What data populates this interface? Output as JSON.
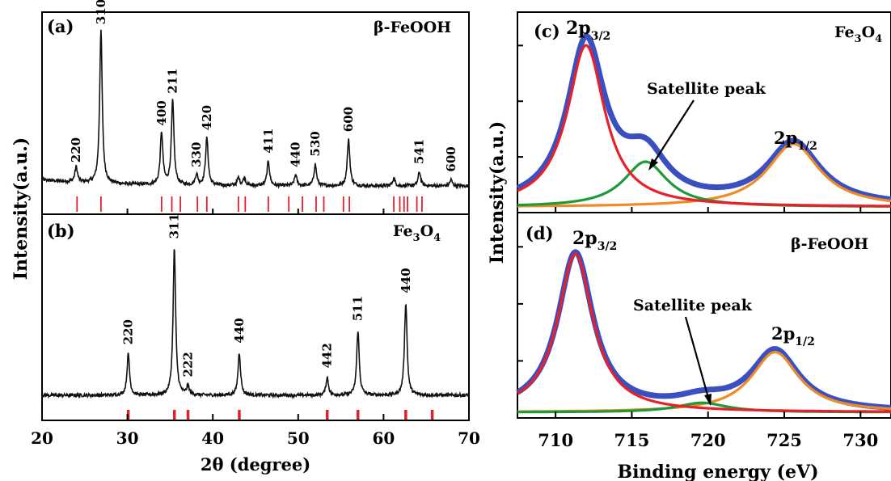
{
  "chart_data": [
    {
      "panel": "(a)",
      "type": "line",
      "material": "β-FeOOH",
      "xlim": [
        20,
        70
      ],
      "peaks": [
        {
          "x": 24.0,
          "h": 0.1,
          "label": "220"
        },
        {
          "x": 26.9,
          "h": 1.0,
          "label": "310"
        },
        {
          "x": 34.0,
          "h": 0.34,
          "label": "400"
        },
        {
          "x": 35.3,
          "h": 0.55,
          "label": "211"
        },
        {
          "x": 38.1,
          "h": 0.07,
          "label": "330"
        },
        {
          "x": 39.3,
          "h": 0.31,
          "label": "420"
        },
        {
          "x": 43.0,
          "h": 0.05,
          "label": ""
        },
        {
          "x": 43.7,
          "h": 0.05,
          "label": ""
        },
        {
          "x": 46.5,
          "h": 0.16,
          "label": "411"
        },
        {
          "x": 49.7,
          "h": 0.07,
          "label": "440"
        },
        {
          "x": 52.0,
          "h": 0.14,
          "label": "530"
        },
        {
          "x": 55.9,
          "h": 0.3,
          "label": "600"
        },
        {
          "x": 61.2,
          "h": 0.05,
          "label": ""
        },
        {
          "x": 64.2,
          "h": 0.09,
          "label": "541"
        },
        {
          "x": 67.9,
          "h": 0.04,
          "label": "600"
        }
      ],
      "reference_lines": [
        24.1,
        26.9,
        34.0,
        35.2,
        36.2,
        38.2,
        39.3,
        43.0,
        43.8,
        46.5,
        48.9,
        50.5,
        52.1,
        53.0,
        55.3,
        56.0,
        61.2,
        61.9,
        62.4,
        62.8,
        63.9,
        64.5
      ]
    },
    {
      "panel": "(b)",
      "type": "line",
      "material": "Fe3O4",
      "xlim": [
        20,
        70
      ],
      "xlabel": "2θ (degree)",
      "xticks": [
        20,
        30,
        40,
        50,
        60,
        70
      ],
      "peaks": [
        {
          "x": 30.1,
          "h": 0.28,
          "label": "220"
        },
        {
          "x": 35.5,
          "h": 1.0,
          "label": "311"
        },
        {
          "x": 37.1,
          "h": 0.06,
          "label": "222"
        },
        {
          "x": 43.1,
          "h": 0.29,
          "label": "440"
        },
        {
          "x": 53.4,
          "h": 0.12,
          "label": "442"
        },
        {
          "x": 57.0,
          "h": 0.44,
          "label": "511"
        },
        {
          "x": 62.6,
          "h": 0.63,
          "label": "440"
        }
      ],
      "reference_lines": [
        30.1,
        35.5,
        37.1,
        43.1,
        53.4,
        57.0,
        62.6,
        65.7
      ]
    },
    {
      "panel": "(c)",
      "type": "line",
      "material": "Fe3O4",
      "xlim": [
        707.5,
        732
      ],
      "peaks": [
        {
          "label": "2p3/2",
          "center": 712.0,
          "height": 1.0,
          "width": 3.0,
          "color": "#e8202a"
        },
        {
          "label": "Satellite peak",
          "center": 715.9,
          "height": 0.28,
          "width": 3.5,
          "color": "#1e9a3a"
        },
        {
          "label": "2p1/2",
          "center": 725.6,
          "height": 0.39,
          "width": 4.2,
          "color": "#f08a24"
        }
      ],
      "envelope_color": "#3a4fc0"
    },
    {
      "panel": "(d)",
      "type": "line",
      "material": "β-FeOOH",
      "xlim": [
        707.5,
        732
      ],
      "xlabel": "Binding energy (eV)",
      "xticks": [
        710,
        715,
        720,
        725,
        730
      ],
      "peaks": [
        {
          "label": "2p3/2",
          "center": 711.3,
          "height": 1.0,
          "width": 2.8,
          "color": "#e8202a"
        },
        {
          "label": "Satellite peak",
          "center": 719.6,
          "height": 0.06,
          "width": 4.0,
          "color": "#1e9a3a"
        },
        {
          "label": "2p1/2",
          "center": 724.4,
          "height": 0.38,
          "width": 3.8,
          "color": "#f08a24"
        }
      ],
      "envelope_color": "#3a4fc0"
    }
  ],
  "labels": {
    "panel_a": "(a)",
    "panel_b": "(b)",
    "panel_c": "(c)",
    "panel_d": "(d)",
    "beta_feooh": "β-FeOOH",
    "fe": "Fe",
    "fe_sub3": "3",
    "o": "O",
    "fe_sub4": "4",
    "ylabel": "Intensity(a.u.)",
    "xrd_xlabel": "2θ (degree)",
    "xps_xlabel": "Binding energy (eV)",
    "p": "2p",
    "p32": "3/2",
    "p12": "1/2",
    "satellite": "Satellite peak"
  }
}
